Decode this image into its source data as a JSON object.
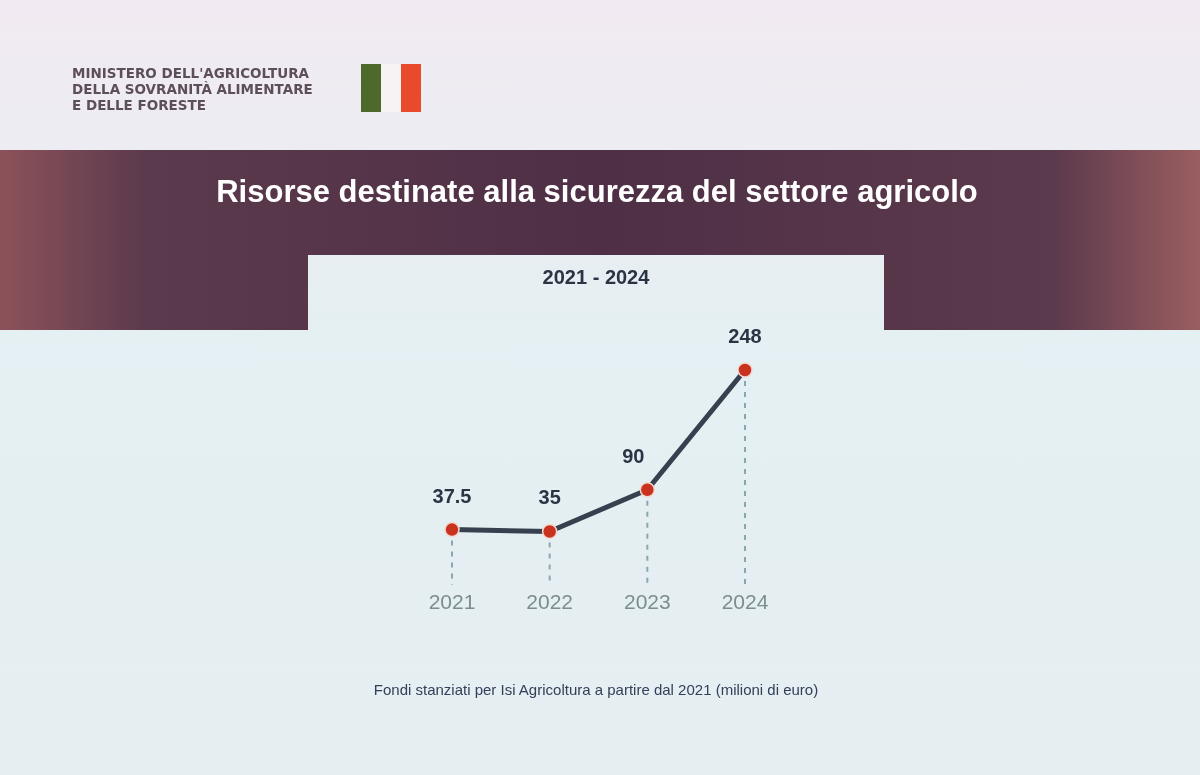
{
  "chart_data": {
    "type": "line",
    "title": "Risorse destinate alla sicurezza del settore agricolo",
    "subtitle": "2021 - 2024",
    "categories": [
      "2021",
      "2022",
      "2023",
      "2024"
    ],
    "series": [
      {
        "color": "#37404f",
        "colors": [
          "#c8321e",
          "#c8321e",
          "#c8321e",
          "#c8321e"
        ],
        "values": [
          37.5,
          35,
          90,
          248
        ]
      }
    ],
    "marker": "circle",
    "data_labels": true,
    "grid": "x",
    "annotations": [
      "MINISTERO DELL'AGRICOLTURA\nDELLA SOVRANITÀ ALIMENTARE\nE DELLE FORESTE",
      "Fondi stanziati per Isi Agricoltura a partire dal 2021 (milioni di euro)"
    ]
  }
}
